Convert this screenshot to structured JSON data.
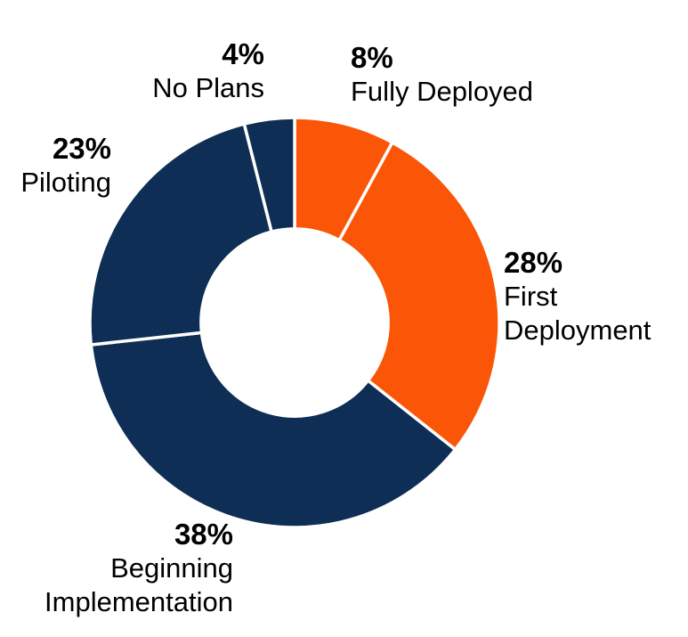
{
  "page": {
    "background": "#FFFFFF"
  },
  "chart_data": {
    "type": "pie",
    "subtype": "donut",
    "title": "",
    "legend": "none",
    "direction": "clockwise",
    "start_angle_deg": 0,
    "inner_radius_ratio": 0.457,
    "value_unit": "%",
    "categories": [
      "Fully Deployed",
      "First Deployment",
      "Beginning Implementation",
      "Piloting",
      "No Plans"
    ],
    "values": [
      8,
      28,
      38,
      23,
      4
    ],
    "segments": [
      {
        "label": "Fully Deployed",
        "value": 8,
        "pct_text": "8%",
        "color": "#FB5507"
      },
      {
        "label": "First Deployment",
        "value": 28,
        "pct_text": "28%",
        "color": "#FB5507"
      },
      {
        "label": "Beginning Implementation",
        "value": 38,
        "pct_text": "38%",
        "color": "#0F2E56"
      },
      {
        "label": "Piloting",
        "value": 23,
        "pct_text": "23%",
        "color": "#0F2E56"
      },
      {
        "label": "No Plans",
        "value": 4,
        "pct_text": "4%",
        "color": "#0F2E56"
      }
    ],
    "colors": {
      "accent_orange": "#FB5507",
      "accent_navy": "#0F2E56",
      "separator": "#FFFFFF",
      "label_text": "#000000"
    }
  }
}
